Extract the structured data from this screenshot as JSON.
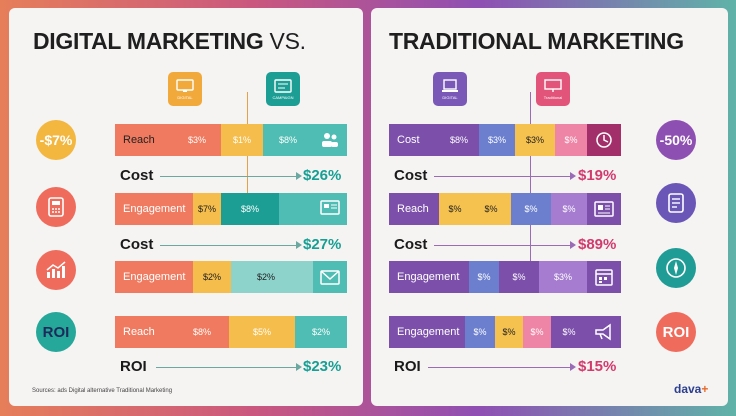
{
  "left_title": {
    "main": "DIGITAL MARKETING",
    "vs": "VS."
  },
  "right_title": "TRADITIONAL MARKETING",
  "left_pins": [
    {
      "caption": "DIGITAL",
      "color": "#f2a93b",
      "icon": "monitor-icon"
    },
    {
      "caption": "CAMPAIGN",
      "color": "#1d9e94",
      "icon": "dashboard-icon"
    }
  ],
  "right_pins": [
    {
      "caption": "DIGITAL",
      "color": "#7a58b8",
      "icon": "laptop-icon"
    },
    {
      "caption": "Traditional",
      "color": "#e25479",
      "icon": "billboard-icon"
    }
  ],
  "left_circles": [
    {
      "text": "-$7%",
      "bg": "#f3b63e",
      "color": "#fff"
    },
    {
      "text": "",
      "bg": "#ef6b5c",
      "icon": "calculator-icon"
    },
    {
      "text": "",
      "bg": "#ef6b5c",
      "icon": "growth-chart-icon"
    },
    {
      "text": "ROI",
      "bg": "#25a79a",
      "color": "#1c2b5a"
    }
  ],
  "right_circles": [
    {
      "text": "-50%",
      "bg": "#8e4fb2",
      "color": "#fff"
    },
    {
      "text": "",
      "bg": "#6a56b6",
      "icon": "document-icon"
    },
    {
      "text": "",
      "bg": "#1f9c95",
      "icon": "compass-icon"
    },
    {
      "text": "ROI",
      "bg": "#ef6b5c",
      "color": "#fff"
    }
  ],
  "chart_data": [
    {
      "type": "table",
      "panel": "Digital Marketing",
      "rows": [
        {
          "label": "Reach",
          "segments": [
            "$3%",
            "$1%",
            "$8%"
          ],
          "icon": "people-icon"
        },
        {
          "label": "Engagement",
          "segments": [
            "$7%",
            "$8%",
            ""
          ],
          "icon": "screen-icon"
        },
        {
          "label": "Engagement",
          "segments": [
            "$2%",
            "$2%",
            ""
          ],
          "icon": "envelope-icon"
        },
        {
          "label": "Reach",
          "segments": [
            "$8%",
            "$5%",
            "$2%"
          ],
          "icon": ""
        }
      ],
      "summaries": [
        {
          "label": "Cost",
          "value": "$26%"
        },
        {
          "label": "Cost",
          "value": "$27%"
        },
        {
          "label": "ROI",
          "value": "$23%"
        }
      ]
    },
    {
      "type": "table",
      "panel": "Traditional Marketing",
      "rows": [
        {
          "label": "Cost",
          "segments": [
            "$8%",
            "$3%",
            "$3%",
            "$%"
          ],
          "icon": "clock-icon"
        },
        {
          "label": "Reach",
          "segments": [
            "$%",
            "$%",
            "$%",
            "$%"
          ],
          "icon": "newspaper-icon"
        },
        {
          "label": "Engagement",
          "segments": [
            "$%",
            "$%",
            "$3%",
            ""
          ],
          "icon": "calendar-icon"
        },
        {
          "label": "Engagement",
          "segments": [
            "$%",
            "$%",
            "$%",
            "$%"
          ],
          "icon": "megaphone-icon"
        }
      ],
      "summaries": [
        {
          "label": "Cost",
          "value": "$19%"
        },
        {
          "label": "Cost",
          "value": "$89%"
        },
        {
          "label": "ROI",
          "value": "$15%"
        }
      ]
    }
  ],
  "footnote": "Sources: ads Digital  alternative Traditional Marketing",
  "brand": {
    "main": "dava",
    "accent": "+"
  }
}
